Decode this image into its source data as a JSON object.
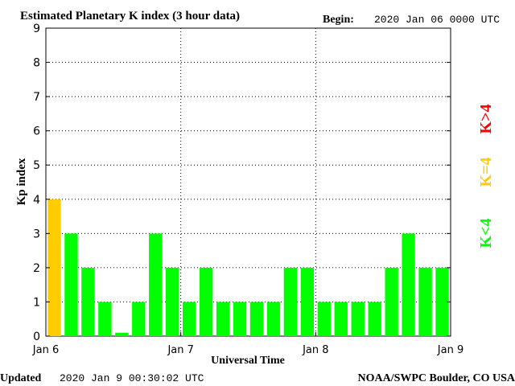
{
  "header": {
    "title": "Estimated Planetary K index (3 hour data)",
    "begin_label": "Begin:",
    "begin_value": "2020 Jan 06 0000 UTC"
  },
  "footer": {
    "updated_label": "Updated",
    "updated_value": "2020 Jan  9 00:30:02 UTC",
    "credit": "NOAA/SWPC Boulder, CO USA"
  },
  "legend": {
    "items": [
      {
        "label": "K<4",
        "color": "#00ff00"
      },
      {
        "label": "K=4",
        "color": "#ffcc00"
      },
      {
        "label": "K>4",
        "color": "#ff0000"
      }
    ]
  },
  "chart_data": {
    "type": "bar",
    "title": "Estimated Planetary K index (3 hour data)",
    "xlabel": "Universal Time",
    "ylabel": "Kp index",
    "ylim": [
      0,
      9
    ],
    "yticks": [
      "0",
      "1",
      "2",
      "3",
      "4",
      "5",
      "6",
      "7",
      "8",
      "9"
    ],
    "xticks": [
      "Jan 6",
      "Jan 7",
      "Jan 8",
      "Jan 9"
    ],
    "grid": true,
    "values": [
      4,
      3,
      2,
      1,
      0.1,
      1,
      3,
      2,
      1,
      2,
      1,
      1,
      1,
      1,
      2,
      2,
      1,
      1,
      1,
      1,
      2,
      3,
      2,
      2
    ],
    "colors": {
      "lt4": "#00ff00",
      "eq4": "#ffcc00",
      "gt4": "#ff0000"
    }
  }
}
